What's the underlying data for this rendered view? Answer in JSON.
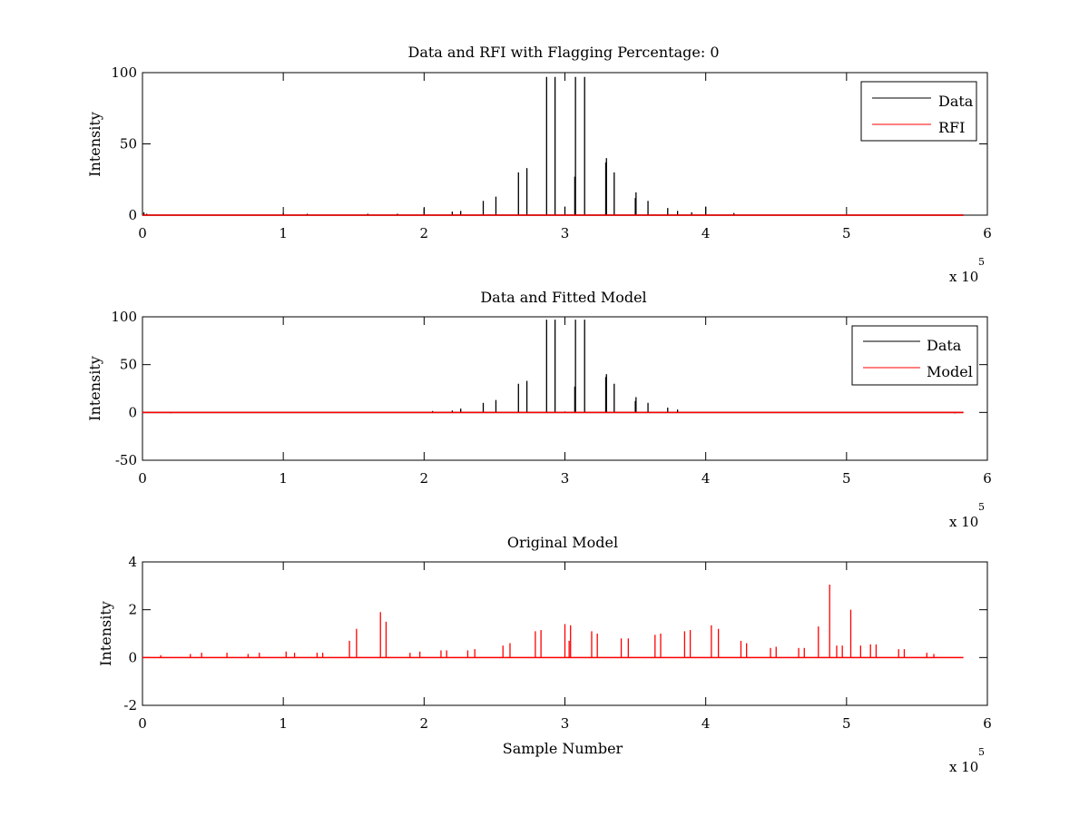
{
  "chart_data": [
    {
      "type": "line",
      "title": "Data and RFI with Flagging Percentage: 0",
      "xlabel": "",
      "ylabel": "Intensity",
      "xlim": [
        0,
        600000
      ],
      "ylim": [
        0,
        100
      ],
      "xticks": [
        "0",
        "1",
        "2",
        "3",
        "4",
        "5",
        "6"
      ],
      "yticks": [
        "0",
        "50",
        "100"
      ],
      "x_exponent_base": "x 10",
      "x_exponent_power": "5",
      "legend": {
        "position": "top-right",
        "entries": [
          "Data",
          "RFI"
        ]
      },
      "series": [
        {
          "name": "Data",
          "color": "#000000",
          "spikes": [
            [
              1000,
              2
            ],
            [
              3000,
              1
            ],
            [
              100000,
              1.5
            ],
            [
              117000,
              1
            ],
            [
              160000,
              1
            ],
            [
              181000,
              1
            ],
            [
              200000,
              5
            ],
            [
              220000,
              2.5
            ],
            [
              226000,
              3
            ],
            [
              242000,
              10
            ],
            [
              251000,
              13
            ],
            [
              267000,
              30
            ],
            [
              273000,
              33
            ],
            [
              287000,
              97
            ],
            [
              293000,
              97
            ],
            [
              300000,
              6
            ],
            [
              307000,
              27
            ],
            [
              307500,
              97
            ],
            [
              314000,
              97
            ],
            [
              329000,
              37
            ],
            [
              329500,
              40
            ],
            [
              335000,
              30
            ],
            [
              350000,
              12
            ],
            [
              350500,
              16
            ],
            [
              359000,
              10
            ],
            [
              373000,
              5
            ],
            [
              380000,
              3
            ],
            [
              390000,
              2
            ],
            [
              400000,
              6
            ],
            [
              420000,
              1.5
            ]
          ]
        },
        {
          "name": "RFI",
          "color": "#ff0000",
          "spikes": []
        }
      ]
    },
    {
      "type": "line",
      "title": "Data and Fitted Model",
      "xlabel": "",
      "ylabel": "Intensity",
      "xlim": [
        0,
        600000
      ],
      "ylim": [
        -50,
        100
      ],
      "xticks": [
        "0",
        "1",
        "2",
        "3",
        "4",
        "5",
        "6"
      ],
      "yticks": [
        "-50",
        "0",
        "50",
        "100"
      ],
      "x_exponent_base": "x 10",
      "x_exponent_power": "5",
      "legend": {
        "position": "top-right",
        "entries": [
          "Data",
          "Model"
        ]
      },
      "series": [
        {
          "name": "Data",
          "color": "#000000",
          "spikes": [
            [
              206000,
              1.5
            ],
            [
              220000,
              2
            ],
            [
              226000,
              4
            ],
            [
              242000,
              10
            ],
            [
              251000,
              13
            ],
            [
              267000,
              30
            ],
            [
              273000,
              33
            ],
            [
              287000,
              97
            ],
            [
              293000,
              97
            ],
            [
              300000,
              1
            ],
            [
              307000,
              27
            ],
            [
              307500,
              97
            ],
            [
              314000,
              97
            ],
            [
              329000,
              37
            ],
            [
              329500,
              40
            ],
            [
              335000,
              30
            ],
            [
              350000,
              12
            ],
            [
              350500,
              16
            ],
            [
              359000,
              10
            ],
            [
              373000,
              5
            ],
            [
              380000,
              3
            ],
            [
              577000,
              -1
            ]
          ]
        },
        {
          "name": "Model",
          "color": "#ff0000",
          "spikes": [
            [
              20000,
              -1
            ],
            [
              577000,
              -1
            ]
          ]
        }
      ]
    },
    {
      "type": "line",
      "title": "Original Model",
      "xlabel": "Sample Number",
      "ylabel": "Intensity",
      "xlim": [
        0,
        600000
      ],
      "ylim": [
        -2,
        4
      ],
      "xticks": [
        "0",
        "1",
        "2",
        "3",
        "4",
        "5",
        "6"
      ],
      "yticks": [
        "-2",
        "0",
        "2",
        "4"
      ],
      "x_exponent_base": "x 10",
      "x_exponent_power": "5",
      "series": [
        {
          "name": "Model",
          "color": "#ff0000",
          "spikes": [
            [
              13000,
              0.1
            ],
            [
              34000,
              0.15
            ],
            [
              42000,
              0.2
            ],
            [
              60000,
              0.2
            ],
            [
              75000,
              0.15
            ],
            [
              83000,
              0.2
            ],
            [
              102000,
              0.25
            ],
            [
              108000,
              0.2
            ],
            [
              124000,
              0.2
            ],
            [
              128000,
              0.2
            ],
            [
              147000,
              0.7
            ],
            [
              152000,
              1.2
            ],
            [
              169000,
              1.9
            ],
            [
              173000,
              1.5
            ],
            [
              190000,
              0.2
            ],
            [
              197000,
              0.25
            ],
            [
              212000,
              0.3
            ],
            [
              216000,
              0.3
            ],
            [
              231000,
              0.3
            ],
            [
              236000,
              0.35
            ],
            [
              256000,
              0.5
            ],
            [
              261000,
              0.6
            ],
            [
              279000,
              1.1
            ],
            [
              283000,
              1.15
            ],
            [
              300000,
              1.4
            ],
            [
              303000,
              0.7
            ],
            [
              304000,
              1.35
            ],
            [
              319000,
              1.1
            ],
            [
              323000,
              1.0
            ],
            [
              340000,
              0.8
            ],
            [
              345000,
              0.8
            ],
            [
              364000,
              0.95
            ],
            [
              368000,
              1.0
            ],
            [
              385000,
              1.1
            ],
            [
              389000,
              1.15
            ],
            [
              404000,
              1.35
            ],
            [
              409000,
              1.2
            ],
            [
              425000,
              0.7
            ],
            [
              429000,
              0.6
            ],
            [
              446000,
              0.4
            ],
            [
              450000,
              0.45
            ],
            [
              466000,
              0.4
            ],
            [
              470000,
              0.4
            ],
            [
              480000,
              1.3
            ],
            [
              488000,
              3.05
            ],
            [
              493000,
              0.5
            ],
            [
              497000,
              0.5
            ],
            [
              503000,
              2.0
            ],
            [
              510000,
              0.5
            ],
            [
              517000,
              0.55
            ],
            [
              521000,
              0.55
            ],
            [
              537000,
              0.35
            ],
            [
              541000,
              0.35
            ],
            [
              557000,
              0.2
            ],
            [
              562000,
              0.15
            ]
          ]
        }
      ]
    }
  ]
}
